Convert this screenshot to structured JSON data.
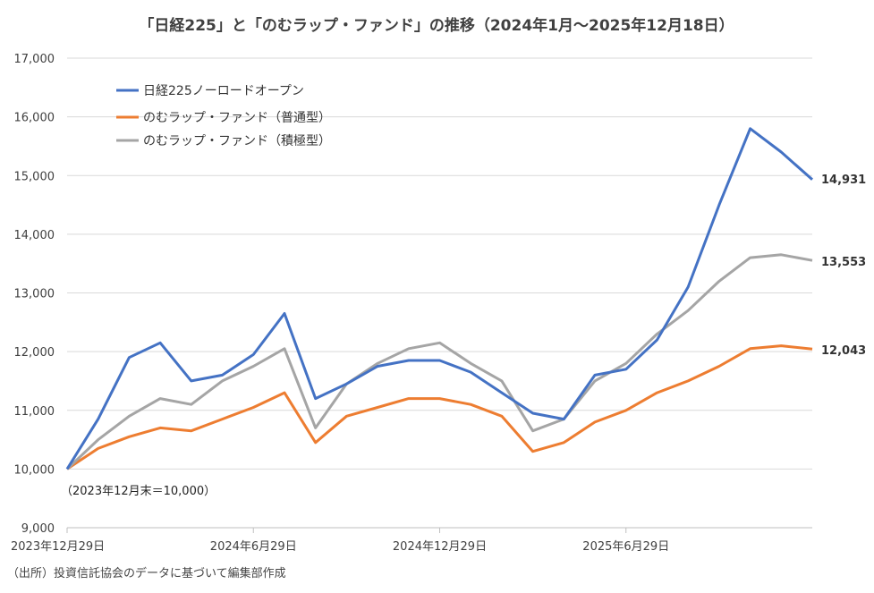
{
  "chart_data": {
    "type": "line",
    "title": "「日経225」と「のむラップ・ファンド」の推移（2024年1月〜2025年12月18日）",
    "xlabel": "",
    "ylabel": "",
    "ylim": [
      9000,
      17000
    ],
    "y_ticks": [
      9000,
      10000,
      11000,
      12000,
      13000,
      14000,
      15000,
      16000,
      17000
    ],
    "y_tick_labels": [
      "9,000",
      "10,000",
      "11,000",
      "12,000",
      "13,000",
      "14,000",
      "15,000",
      "16,000",
      "17,000"
    ],
    "grid": true,
    "legend_position": "top-left",
    "x_tick_labels": [
      "2023年12月29日",
      "2024年6月29日",
      "2024年12月29日",
      "2025年6月29日"
    ],
    "x_tick_index": [
      0,
      6,
      12,
      18
    ],
    "x": [
      "2023-12",
      "2024-01",
      "2024-02",
      "2024-03",
      "2024-04",
      "2024-05",
      "2024-06",
      "2024-07",
      "2024-08",
      "2024-09",
      "2024-10",
      "2024-11",
      "2024-12",
      "2025-01",
      "2025-02",
      "2025-03",
      "2025-04",
      "2025-05",
      "2025-06",
      "2025-07",
      "2025-08",
      "2025-09",
      "2025-10",
      "2025-11",
      "2025-12-18"
    ],
    "series": [
      {
        "name": "日経225ノーロードオープン",
        "color": "#4472C4",
        "values": [
          10000,
          10850,
          11900,
          12150,
          11500,
          11600,
          11950,
          12650,
          11200,
          11450,
          11750,
          11850,
          11850,
          11650,
          11300,
          10950,
          10850,
          11600,
          11700,
          12200,
          13100,
          14500,
          15800,
          15400,
          14931
        ]
      },
      {
        "name": "のむラップ・ファンド（普通型）",
        "color": "#ED7D31",
        "values": [
          10000,
          10350,
          10550,
          10700,
          10650,
          10850,
          11050,
          11300,
          10450,
          10900,
          11050,
          11200,
          11200,
          11100,
          10900,
          10300,
          10450,
          10800,
          11000,
          11300,
          11500,
          11750,
          12050,
          12100,
          12043
        ]
      },
      {
        "name": "のむラップ・ファンド（積極型）",
        "color": "#A5A5A5",
        "values": [
          10000,
          10500,
          10900,
          11200,
          11100,
          11500,
          11750,
          12050,
          10700,
          11450,
          11800,
          12050,
          12150,
          11800,
          11500,
          10650,
          10850,
          11500,
          11800,
          12300,
          12700,
          13200,
          13600,
          13650,
          13553
        ]
      }
    ],
    "end_labels": [
      "14,931",
      "13,553",
      "12,043"
    ],
    "annotation": "（2023年12月末＝10,000）"
  },
  "source_note": "（出所）投資信託協会のデータに基づいて編集部作成"
}
